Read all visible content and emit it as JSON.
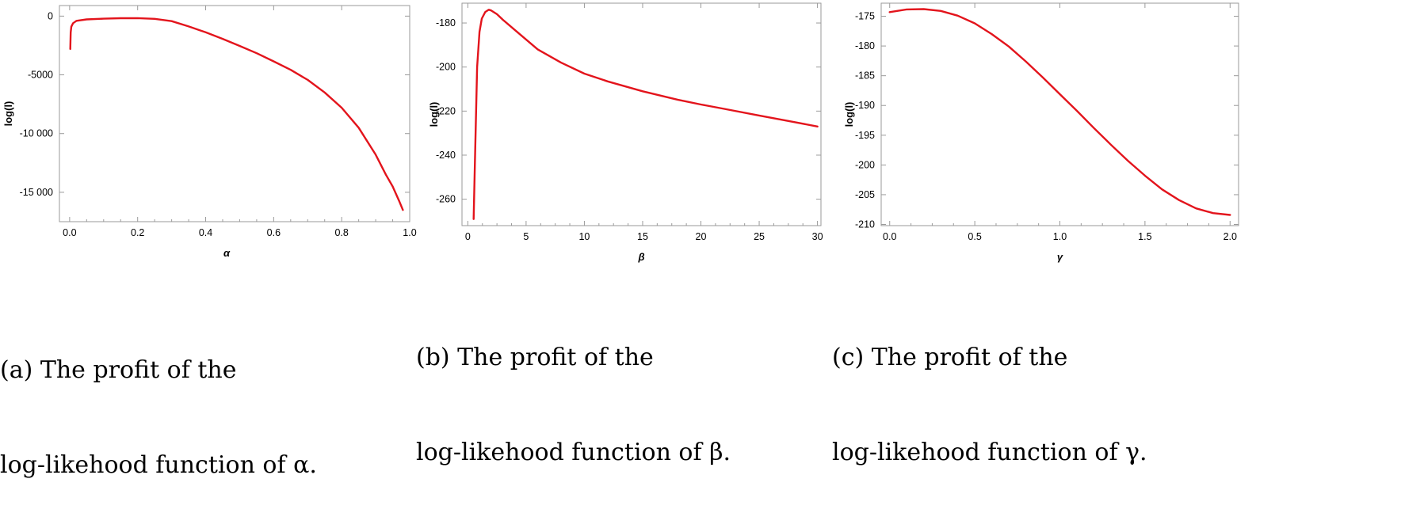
{
  "colors": {
    "curve": "#e3141c",
    "frame": "#9a9a9a"
  },
  "captions": [
    {
      "line1": "(a) The profit of the",
      "line2": "log-likehood function of α."
    },
    {
      "line1": "(b) The profit of the",
      "line2": "log-likehood function of β."
    },
    {
      "line1": "(c) The profit of the",
      "line2": "log-likehood function of γ."
    }
  ],
  "chart_data": [
    {
      "type": "line",
      "xlabel": "α",
      "ylabel": "log(l)",
      "xlim": [
        -0.03,
        1.0
      ],
      "ylim": [
        -17500,
        900
      ],
      "xticks": [
        0.0,
        0.2,
        0.4,
        0.6,
        0.8,
        1.0
      ],
      "xtick_labels": [
        "0.0",
        "0.2",
        "0.4",
        "0.6",
        "0.8",
        "1.0"
      ],
      "yticks": [
        0,
        -5000,
        -10000,
        -15000
      ],
      "ytick_labels": [
        "0",
        "-5000",
        "-10 000",
        "-15 000"
      ],
      "grid": false,
      "series": [
        {
          "color": "#e3141c",
          "x": [
            0.002,
            0.003,
            0.005,
            0.01,
            0.02,
            0.05,
            0.1,
            0.15,
            0.2,
            0.25,
            0.3,
            0.35,
            0.4,
            0.45,
            0.5,
            0.55,
            0.6,
            0.65,
            0.7,
            0.75,
            0.8,
            0.85,
            0.9,
            0.93,
            0.95,
            0.97,
            0.98
          ],
          "y": [
            -2800,
            -1400,
            -900,
            -600,
            -400,
            -280,
            -220,
            -180,
            -170,
            -230,
            -430,
            -880,
            -1380,
            -1940,
            -2540,
            -3160,
            -3850,
            -4570,
            -5430,
            -6500,
            -7800,
            -9500,
            -11800,
            -13500,
            -14500,
            -15800,
            -16500
          ]
        }
      ]
    },
    {
      "type": "line",
      "xlabel": "β",
      "ylabel": "log(l)",
      "xlim": [
        -0.5,
        30.3
      ],
      "ylim": [
        -272,
        -171
      ],
      "xticks": [
        0,
        5,
        10,
        15,
        20,
        25,
        30
      ],
      "xtick_labels": [
        "0",
        "5",
        "10",
        "15",
        "20",
        "25",
        "30"
      ],
      "yticks": [
        -180,
        -200,
        -220,
        -240,
        -260
      ],
      "ytick_labels": [
        "-180",
        "-200",
        "-220",
        "-240",
        "-260"
      ],
      "grid": false,
      "series": [
        {
          "color": "#e3141c",
          "x": [
            0.5,
            0.6,
            0.8,
            1.0,
            1.2,
            1.5,
            1.8,
            2.0,
            2.5,
            3.0,
            4.0,
            5.0,
            6.0,
            8.0,
            10.0,
            12.0,
            15.0,
            18.0,
            20.0,
            22.0,
            25.0,
            28.0,
            30.0
          ],
          "y": [
            -269,
            -245,
            -200,
            -184,
            -178,
            -175,
            -174,
            -174.3,
            -176,
            -178.5,
            -183,
            -187.5,
            -192,
            -198,
            -203,
            -206.5,
            -211,
            -214.8,
            -217,
            -219,
            -222,
            -225,
            -227
          ]
        }
      ]
    },
    {
      "type": "line",
      "xlabel": "γ",
      "ylabel": "log(l)",
      "xlim": [
        -0.05,
        2.05
      ],
      "ylim": [
        -210.2,
        -172.8
      ],
      "xticks": [
        0.0,
        0.5,
        1.0,
        1.5,
        2.0
      ],
      "xtick_labels": [
        "0.0",
        "0.5",
        "1.0",
        "1.5",
        "2.0"
      ],
      "yticks": [
        -175,
        -180,
        -185,
        -190,
        -195,
        -200,
        -205,
        -210
      ],
      "ytick_labels": [
        "-175",
        "-180",
        "-185",
        "-190",
        "-195",
        "-200",
        "-205",
        "-210"
      ],
      "grid": false,
      "series": [
        {
          "color": "#e3141c",
          "x": [
            0.0,
            0.1,
            0.2,
            0.3,
            0.4,
            0.5,
            0.6,
            0.7,
            0.8,
            0.9,
            1.0,
            1.1,
            1.2,
            1.3,
            1.4,
            1.5,
            1.6,
            1.7,
            1.8,
            1.9,
            2.0
          ],
          "y": [
            -174.3,
            -173.85,
            -173.8,
            -174.1,
            -174.9,
            -176.2,
            -178.0,
            -180.1,
            -182.6,
            -185.3,
            -188.1,
            -190.9,
            -193.8,
            -196.6,
            -199.3,
            -201.8,
            -204.1,
            -205.9,
            -207.3,
            -208.1,
            -208.4
          ]
        }
      ]
    }
  ]
}
